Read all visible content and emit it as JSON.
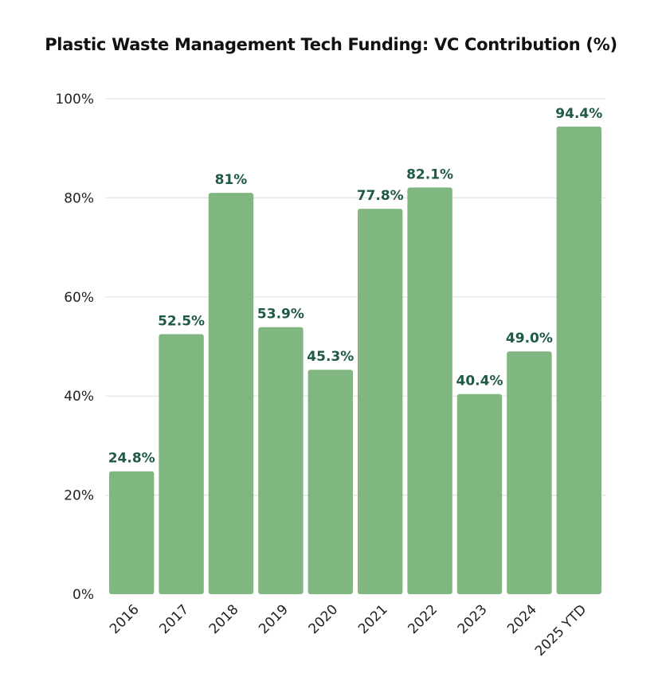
{
  "chart_data": {
    "type": "bar",
    "title": "Plastic Waste Management Tech Funding: VC Contribution (%)",
    "xlabel": "",
    "ylabel": "",
    "categories": [
      "2016",
      "2017",
      "2018",
      "2019",
      "2020",
      "2021",
      "2022",
      "2023",
      "2024",
      "2025 YTD"
    ],
    "values": [
      24.8,
      52.5,
      81,
      53.9,
      45.3,
      77.8,
      82.1,
      40.4,
      49.0,
      94.4
    ],
    "data_labels": [
      "24.8%",
      "52.5%",
      "81%",
      "53.9%",
      "45.3%",
      "77.8%",
      "82.1%",
      "40.4%",
      "49.0%",
      "94.4%"
    ],
    "ylim": [
      0,
      100
    ],
    "yticks": [
      0,
      20,
      40,
      60,
      80,
      100
    ],
    "ytick_labels": [
      "0%",
      "20%",
      "40%",
      "60%",
      "80%",
      "100%"
    ],
    "grid": true,
    "legend": "none",
    "colors": {
      "bar": "#80b780",
      "data_label": "#1f5a45",
      "grid": "#e2e2e2"
    }
  }
}
